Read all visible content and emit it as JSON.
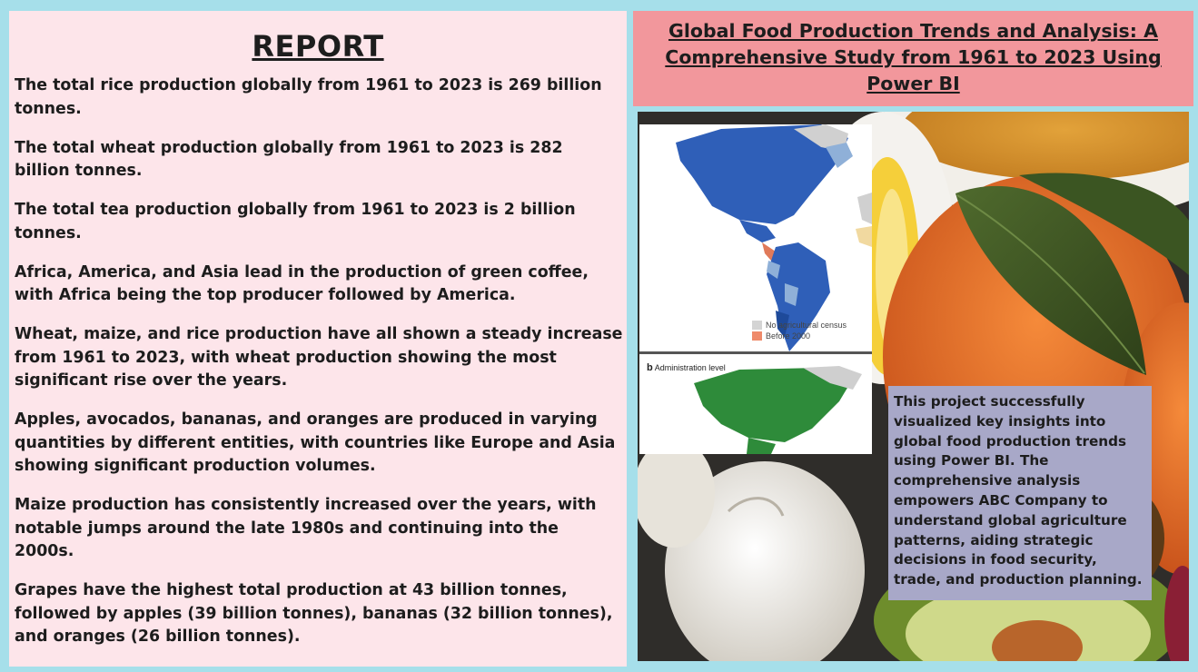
{
  "report": {
    "title": "REPORT",
    "findings": [
      "The total rice production globally from 1961 to 2023 is 269 billion tonnes.",
      "The total wheat production globally from 1961 to 2023 is 282 billion tonnes.",
      "The total tea production globally from 1961 to 2023 is 2 billion tonnes.",
      "Africa, America, and Asia lead in the production of green coffee, with Africa being the top producer followed by America.",
      "Wheat, maize, and rice production have all shown a steady increase from 1961 to 2023, with wheat production showing the most significant rise over the years.",
      "Apples, avocados, bananas, and oranges are produced in varying quantities by different entities, with countries like Europe and Asia showing significant production volumes.",
      "Maize production has consistently increased over the years, with notable jumps around the late 1980s and continuing into the 2000s.",
      "Grapes have the highest total production at 43 billion tonnes, followed by apples (39 billion tonnes), bananas (32 billion tonnes), and oranges (26 billion tonnes)."
    ]
  },
  "header": {
    "title": "Global Food Production Trends and Analysis: A Comprehensive Study from 1961 to 2023 Using Power BI"
  },
  "map_figure": {
    "legend": [
      {
        "label": "No agricultural census",
        "color": "#d4d4d4"
      },
      {
        "label": "Before 2000",
        "color": "#ef8a6a"
      }
    ],
    "panel_b_letter": "b",
    "panel_b_label": "Administration level"
  },
  "summary": {
    "text": "This project successfully visualized key insights into global food production trends using Power BI. The comprehensive analysis empowers ABC Company to understand global agriculture patterns, aiding strategic decisions in food security, trade, and production planning."
  },
  "colors": {
    "background": "#a6dfea",
    "report_panel": "#fde5ea",
    "title_box": "#f2979c",
    "summary_box": "#a8a8c8"
  }
}
